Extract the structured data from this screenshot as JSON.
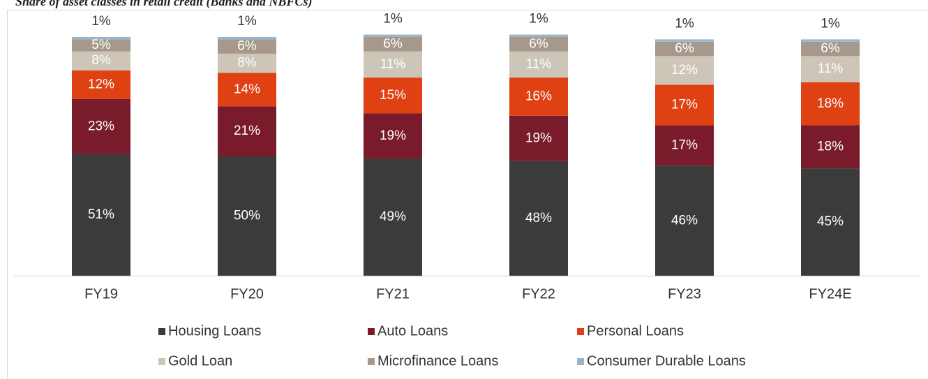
{
  "chart_data": {
    "type": "stacked_bar",
    "title": "Share of asset classes in retail credit (Banks and NBFCs)",
    "categories": [
      "FY19",
      "FY20",
      "FY21",
      "FY22",
      "FY23",
      "FY24E"
    ],
    "ylim": [
      0,
      100
    ],
    "series": [
      {
        "name": "Housing Loans",
        "color": "#3b3b3b",
        "values": [
          51,
          50,
          49,
          48,
          46,
          45
        ],
        "value_labels": [
          "51%",
          "50%",
          "49%",
          "48%",
          "46%",
          "45%"
        ]
      },
      {
        "name": "Auto Loans",
        "color": "#7a1b2b",
        "values": [
          23,
          21,
          19,
          19,
          17,
          18
        ],
        "value_labels": [
          "23%",
          "21%",
          "19%",
          "19%",
          "17%",
          "18%"
        ]
      },
      {
        "name": "Personal Loans",
        "color": "#df4112",
        "values": [
          12,
          14,
          15,
          16,
          17,
          18
        ],
        "value_labels": [
          "12%",
          "14%",
          "15%",
          "16%",
          "17%",
          "18%"
        ]
      },
      {
        "name": "Gold Loan",
        "color": "#cec5b9",
        "values": [
          8,
          8,
          11,
          11,
          12,
          11
        ],
        "value_labels": [
          "8%",
          "8%",
          "11%",
          "11%",
          "12%",
          "11%"
        ]
      },
      {
        "name": "Microfinance Loans",
        "color": "#a6998b",
        "values": [
          5,
          6,
          6,
          6,
          6,
          6
        ],
        "value_labels": [
          "5%",
          "6%",
          "6%",
          "6%",
          "6%",
          "6%"
        ]
      },
      {
        "name": "Consumer Durable Loans",
        "color": "#9cb4c9",
        "values": [
          1,
          1,
          1,
          1,
          1,
          1
        ],
        "value_labels": [
          "1%",
          "1%",
          "1%",
          "1%",
          "1%",
          "1%"
        ]
      }
    ]
  }
}
